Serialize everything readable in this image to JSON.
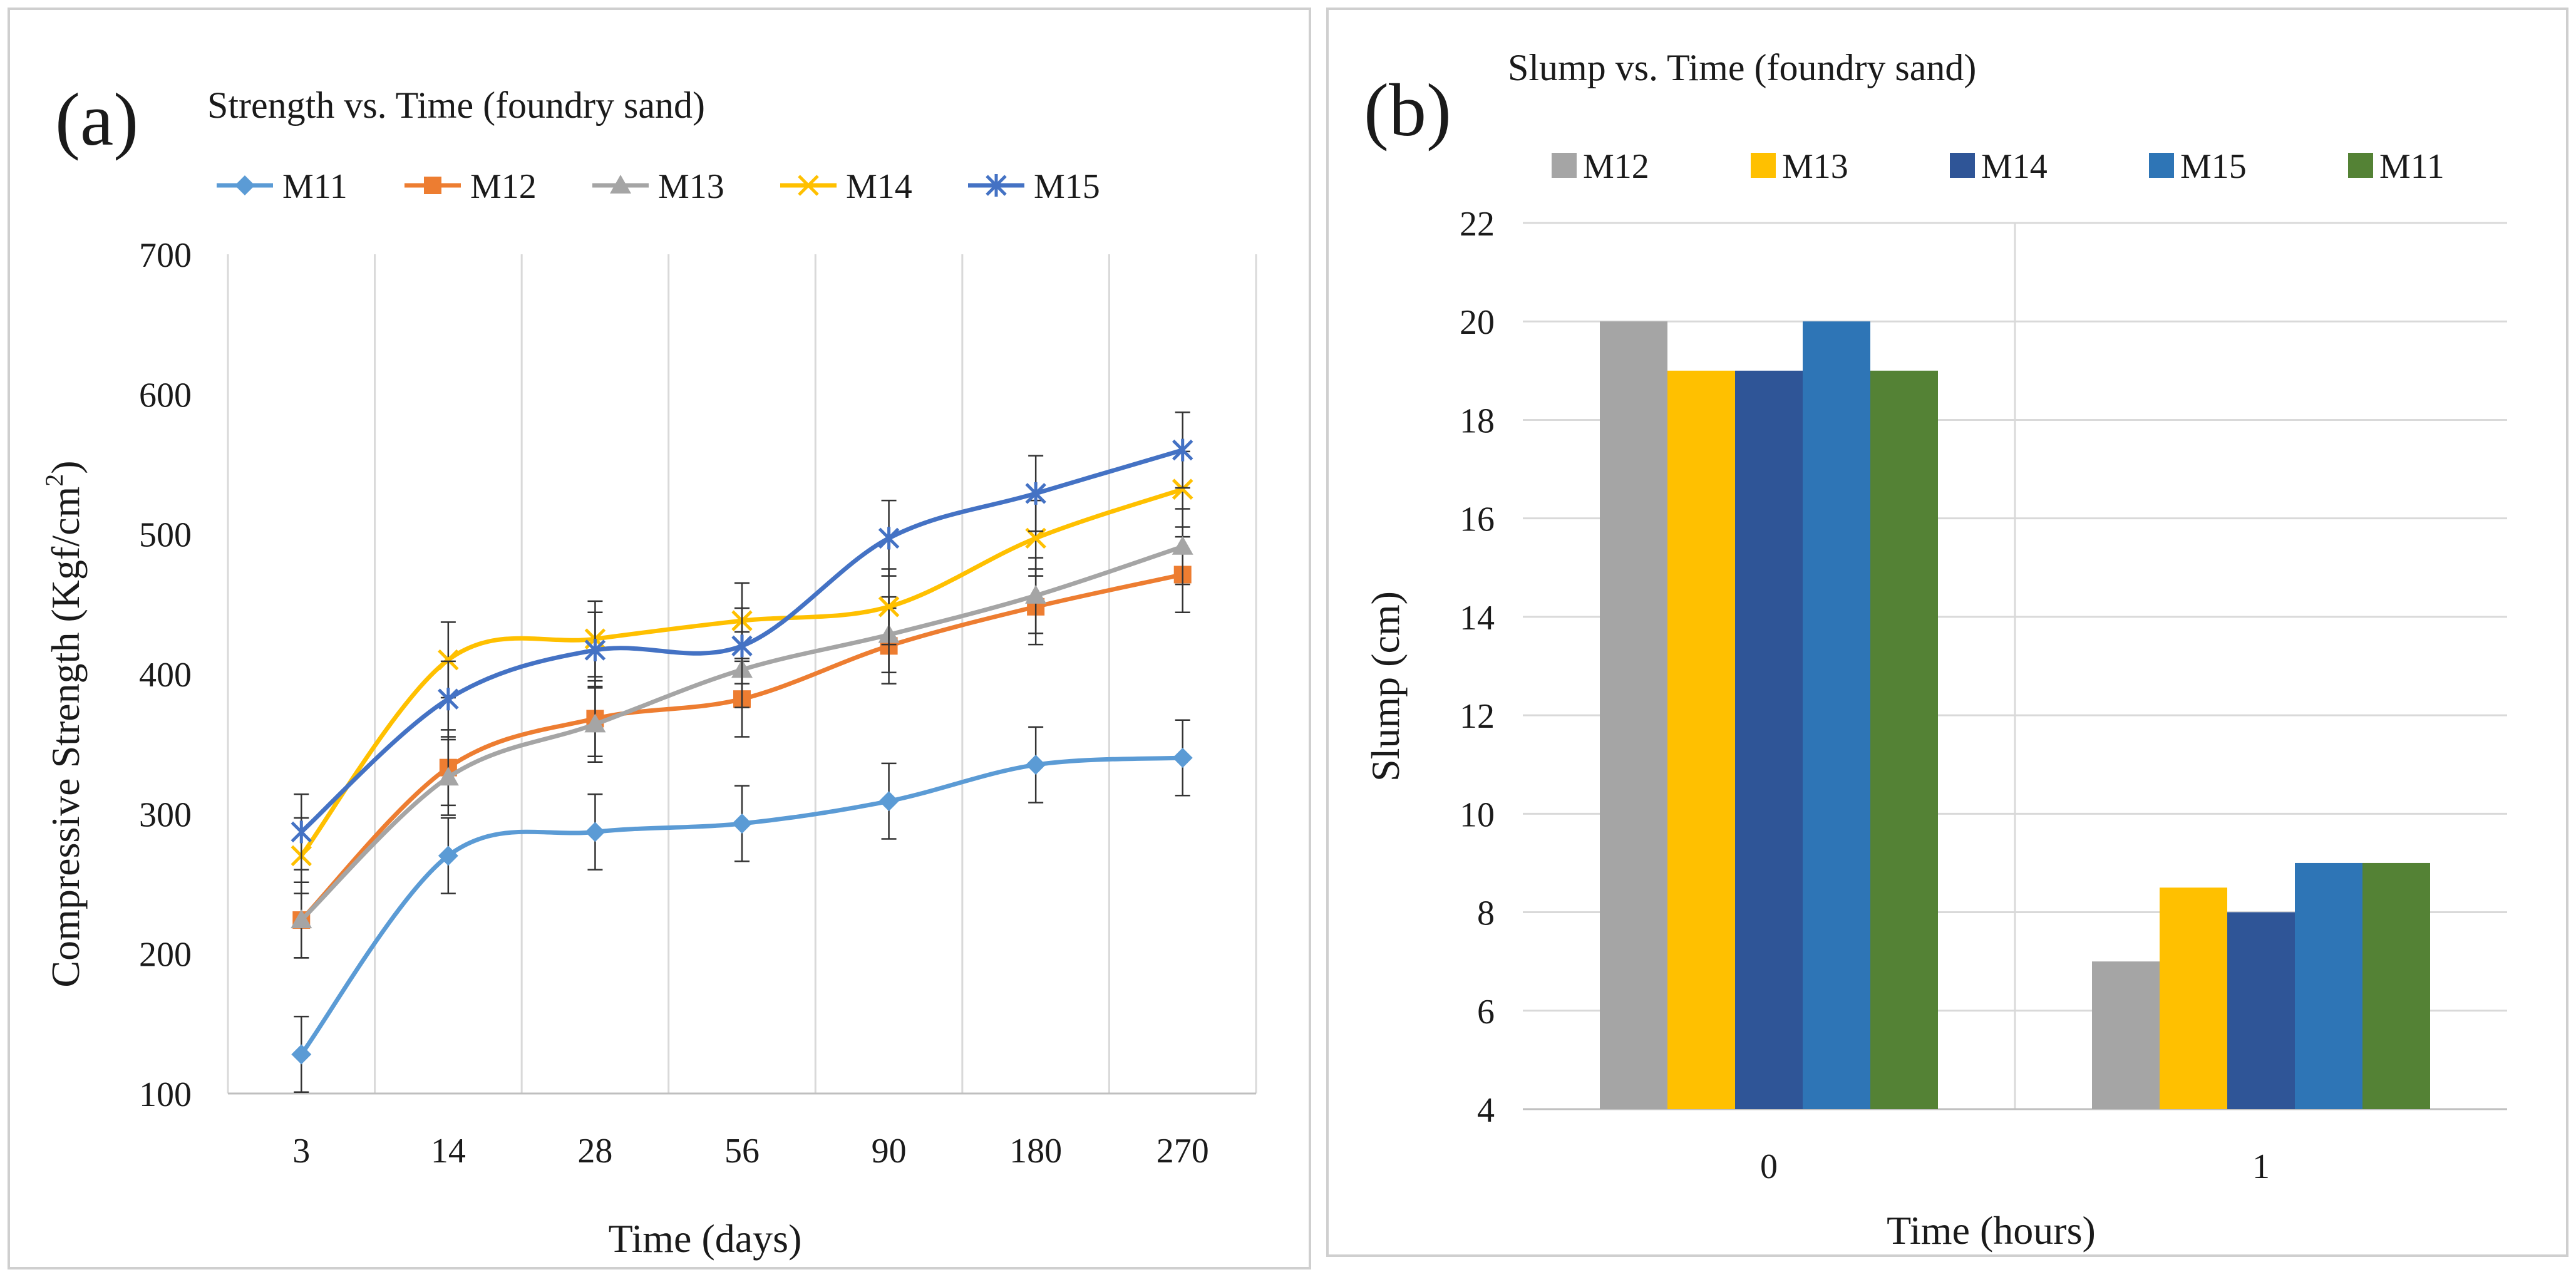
{
  "chart_data": [
    {
      "panel_label": "(a)",
      "type": "line",
      "title": "Strength vs. Time (foundry sand)",
      "xlabel": "Time (days)",
      "ylabel": "Compressive Strength (Kgf/cm",
      "ylabel_sup": "2",
      "ylabel_end": ")",
      "categories": [
        "3",
        "14",
        "28",
        "56",
        "90",
        "180",
        "270"
      ],
      "ylim": [
        100,
        700
      ],
      "yticks": [
        "100",
        "200",
        "300",
        "400",
        "500",
        "600",
        "700"
      ],
      "error_bar": 27,
      "grid": "vertical",
      "legend_position": "top",
      "series": [
        {
          "name": "M11",
          "color": "#5b9bd5",
          "marker": "diamond",
          "values": [
            128,
            270,
            287,
            293,
            309,
            335,
            340
          ]
        },
        {
          "name": "M12",
          "color": "#ed7d31",
          "marker": "square",
          "values": [
            224,
            333,
            368,
            382,
            420,
            448,
            471
          ]
        },
        {
          "name": "M13",
          "color": "#a5a5a5",
          "marker": "triangle",
          "values": [
            224,
            326,
            364,
            403,
            428,
            456,
            491
          ]
        },
        {
          "name": "M14",
          "color": "#ffc000",
          "marker": "x",
          "values": [
            270,
            410,
            425,
            438,
            448,
            497,
            532
          ]
        },
        {
          "name": "M15",
          "color": "#4472c4",
          "marker": "star",
          "values": [
            287,
            382,
            417,
            420,
            497,
            529,
            560
          ]
        }
      ]
    },
    {
      "panel_label": "(b)",
      "type": "bar",
      "title": "Slump vs. Time (foundry sand)",
      "xlabel": "Time (hours)",
      "ylabel": "Slump (cm)",
      "categories": [
        "0",
        "1"
      ],
      "ylim": [
        4,
        22
      ],
      "yticks": [
        "4",
        "6",
        "8",
        "10",
        "12",
        "14",
        "16",
        "18",
        "20",
        "22"
      ],
      "grid": "horizontal",
      "legend_position": "top",
      "series": [
        {
          "name": "M12",
          "color": "#a5a5a5",
          "values": [
            20,
            7
          ]
        },
        {
          "name": "M13",
          "color": "#ffc000",
          "values": [
            19,
            8.5
          ]
        },
        {
          "name": "M14",
          "color": "#2f5597",
          "values": [
            19,
            8
          ]
        },
        {
          "name": "M15",
          "color": "#2e75b6",
          "values": [
            20,
            9
          ]
        },
        {
          "name": "M11",
          "color": "#548235",
          "values": [
            19,
            9
          ]
        }
      ]
    }
  ]
}
